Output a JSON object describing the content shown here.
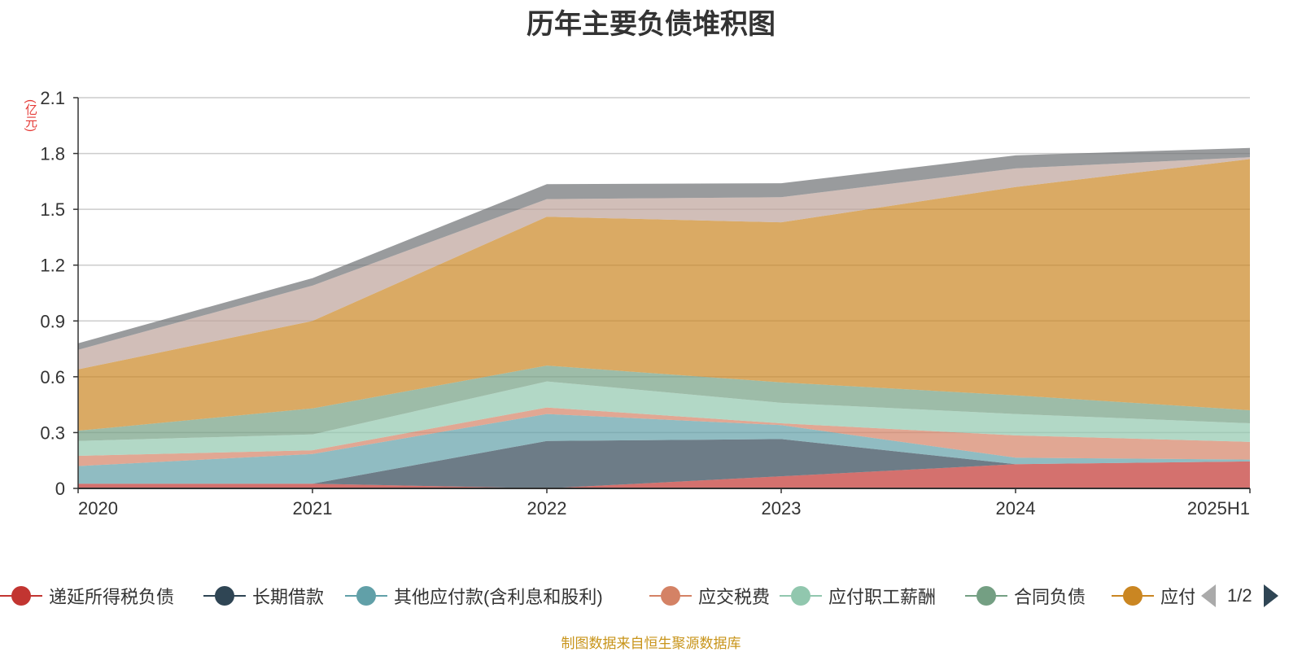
{
  "title": "历年主要负债堆积图",
  "unit_label": "(亿元)",
  "source_note": "制图数据来自恒生聚源数据库",
  "legend_page": "1/2",
  "chart_data": {
    "type": "area",
    "stacked": true,
    "title": "历年主要负债堆积图",
    "ylabel": "(亿元)",
    "categories": [
      "2020",
      "2021",
      "2022",
      "2023",
      "2024",
      "2025H1"
    ],
    "ylim": [
      0,
      2.1
    ],
    "yticks": [
      "0",
      "0.3",
      "0.6",
      "0.9",
      "1.2",
      "1.5",
      "1.8",
      "2.1"
    ],
    "grid": true,
    "legend_position": "bottom",
    "series": [
      {
        "name": "递延所得税负债",
        "color": "#c23531",
        "values": [
          0.025,
          0.025,
          0.0,
          0.065,
          0.13,
          0.145
        ]
      },
      {
        "name": "长期借款",
        "color": "#2f4554",
        "values": [
          0.0,
          0.0,
          0.255,
          0.2,
          0.0,
          0.0
        ]
      },
      {
        "name": "其他应付款(含利息和股利)",
        "color": "#61a0a8",
        "values": [
          0.095,
          0.16,
          0.145,
          0.075,
          0.035,
          0.01
        ]
      },
      {
        "name": "应交税费",
        "color": "#d48265",
        "values": [
          0.055,
          0.02,
          0.035,
          0.01,
          0.12,
          0.095
        ]
      },
      {
        "name": "应付职工薪酬",
        "color": "#91c7ae",
        "values": [
          0.08,
          0.085,
          0.14,
          0.11,
          0.115,
          0.1
        ]
      },
      {
        "name": "合同负债",
        "color": "#749f83",
        "values": [
          0.055,
          0.14,
          0.085,
          0.11,
          0.1,
          0.07
        ]
      },
      {
        "name": "应付账款",
        "color": "#ca8622",
        "values": [
          0.33,
          0.47,
          0.8,
          0.86,
          1.12,
          1.35
        ]
      },
      {
        "name": "",
        "color": "#bda29a",
        "values": [
          0.105,
          0.19,
          0.095,
          0.135,
          0.1,
          0.01
        ]
      },
      {
        "name": "",
        "color": "#6e7074",
        "values": [
          0.035,
          0.04,
          0.08,
          0.075,
          0.07,
          0.05
        ]
      }
    ]
  }
}
